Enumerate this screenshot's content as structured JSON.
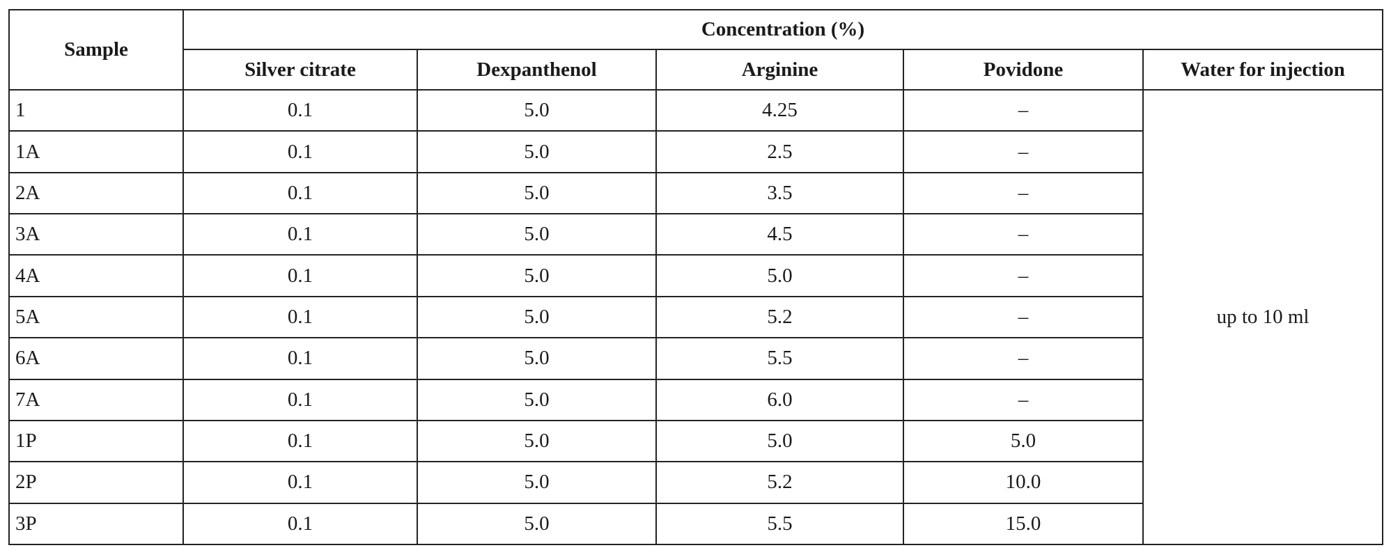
{
  "table": {
    "sample_header": "Sample",
    "group_header": "Concentration (%)",
    "columns": [
      "Silver citrate",
      "Dexpanthenol",
      "Arginine",
      "Povidone",
      "Water for injection"
    ],
    "water_value": "up to 10 ml",
    "rows": [
      {
        "sample": "1",
        "silver_citrate": "0.1",
        "dexpanthenol": "5.0",
        "arginine": "4.25",
        "povidone": "–"
      },
      {
        "sample": "1A",
        "silver_citrate": "0.1",
        "dexpanthenol": "5.0",
        "arginine": "2.5",
        "povidone": "–"
      },
      {
        "sample": "2A",
        "silver_citrate": "0.1",
        "dexpanthenol": "5.0",
        "arginine": "3.5",
        "povidone": "–"
      },
      {
        "sample": "3A",
        "silver_citrate": "0.1",
        "dexpanthenol": "5.0",
        "arginine": "4.5",
        "povidone": "–"
      },
      {
        "sample": "4A",
        "silver_citrate": "0.1",
        "dexpanthenol": "5.0",
        "arginine": "5.0",
        "povidone": "–"
      },
      {
        "sample": "5A",
        "silver_citrate": "0.1",
        "dexpanthenol": "5.0",
        "arginine": "5.2",
        "povidone": "–"
      },
      {
        "sample": "6A",
        "silver_citrate": "0.1",
        "dexpanthenol": "5.0",
        "arginine": "5.5",
        "povidone": "–"
      },
      {
        "sample": "7A",
        "silver_citrate": "0.1",
        "dexpanthenol": "5.0",
        "arginine": "6.0",
        "povidone": "–"
      },
      {
        "sample": "1P",
        "silver_citrate": "0.1",
        "dexpanthenol": "5.0",
        "arginine": "5.0",
        "povidone": "5.0"
      },
      {
        "sample": "2P",
        "silver_citrate": "0.1",
        "dexpanthenol": "5.0",
        "arginine": "5.2",
        "povidone": "10.0"
      },
      {
        "sample": "3P",
        "silver_citrate": "0.1",
        "dexpanthenol": "5.0",
        "arginine": "5.5",
        "povidone": "15.0"
      }
    ]
  }
}
